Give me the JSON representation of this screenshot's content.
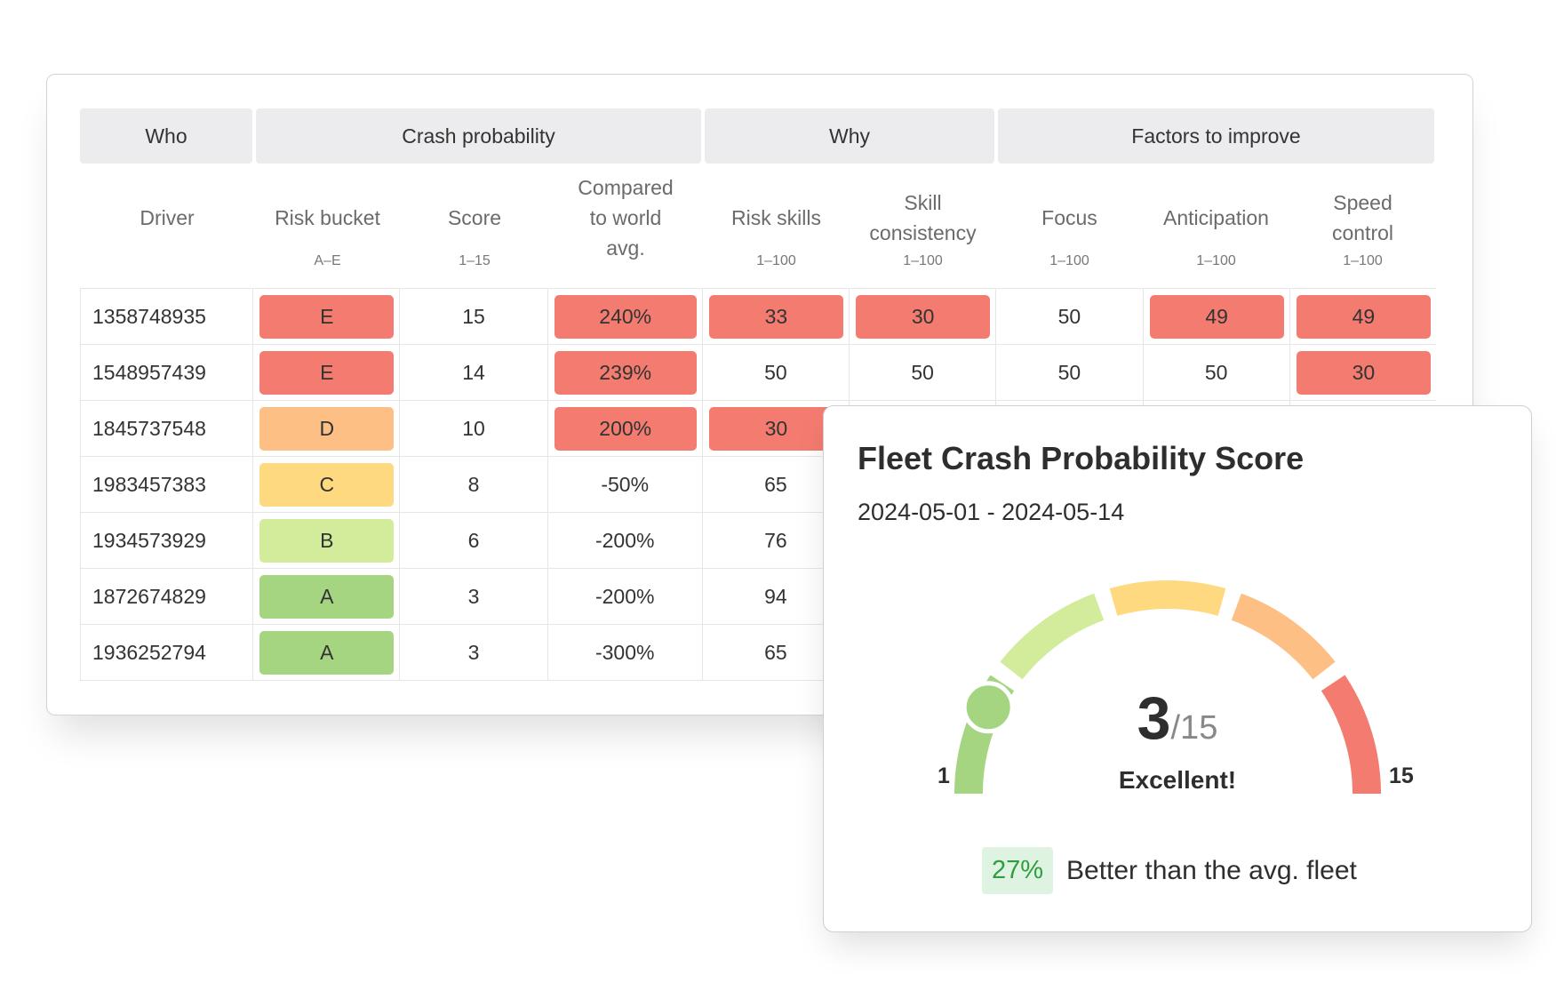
{
  "colors": {
    "red": "#f47b70",
    "orange": "#fdbf84",
    "yellow": "#fed97f",
    "lightgreen": "#d2ec9c",
    "green": "#a6d582"
  },
  "table": {
    "groups": [
      "Who",
      "Crash probability",
      "Why",
      "Factors to improve"
    ],
    "columns": [
      {
        "label": "Driver",
        "sub": ""
      },
      {
        "label": "Risk bucket",
        "sub": "A–E"
      },
      {
        "label": "Score",
        "sub": "1–15"
      },
      {
        "label": "Compared to world avg.",
        "sub": ""
      },
      {
        "label": "Risk skills",
        "sub": "1–100"
      },
      {
        "label": "Skill consistency",
        "sub": "1–100"
      },
      {
        "label": "Focus",
        "sub": "1–100"
      },
      {
        "label": "Anticipation",
        "sub": "1–100"
      },
      {
        "label": "Speed control",
        "sub": "1–100"
      }
    ],
    "rows": [
      [
        {
          "t": "1358748935"
        },
        {
          "t": "E",
          "c": "red"
        },
        {
          "t": "15"
        },
        {
          "t": "240%",
          "c": "red"
        },
        {
          "t": "33",
          "c": "red"
        },
        {
          "t": "30",
          "c": "red"
        },
        {
          "t": "50"
        },
        {
          "t": "49",
          "c": "red"
        },
        {
          "t": "49",
          "c": "red"
        }
      ],
      [
        {
          "t": "1548957439"
        },
        {
          "t": "E",
          "c": "red"
        },
        {
          "t": "14"
        },
        {
          "t": "239%",
          "c": "red"
        },
        {
          "t": "50"
        },
        {
          "t": "50"
        },
        {
          "t": "50"
        },
        {
          "t": "50"
        },
        {
          "t": "30",
          "c": "red"
        }
      ],
      [
        {
          "t": "1845737548"
        },
        {
          "t": "D",
          "c": "orange"
        },
        {
          "t": "10"
        },
        {
          "t": "200%",
          "c": "red"
        },
        {
          "t": "30",
          "c": "red"
        }
      ],
      [
        {
          "t": "1983457383"
        },
        {
          "t": "C",
          "c": "yellow"
        },
        {
          "t": "8"
        },
        {
          "t": "-50%"
        },
        {
          "t": "65"
        }
      ],
      [
        {
          "t": "1934573929"
        },
        {
          "t": "B",
          "c": "lightgreen"
        },
        {
          "t": "6"
        },
        {
          "t": "-200%"
        },
        {
          "t": "76"
        }
      ],
      [
        {
          "t": "1872674829"
        },
        {
          "t": "A",
          "c": "green"
        },
        {
          "t": "3"
        },
        {
          "t": "-200%"
        },
        {
          "t": "94"
        }
      ],
      [
        {
          "t": "1936252794"
        },
        {
          "t": "A",
          "c": "green"
        },
        {
          "t": "3"
        },
        {
          "t": "-300%"
        },
        {
          "t": "65"
        }
      ]
    ]
  },
  "fleet": {
    "title": "Fleet Crash Probability Score",
    "date_range": "2024-05-01 - 2024-05-14",
    "score": 3,
    "score_display": "3",
    "max_display": "/15",
    "min": 1,
    "max": 15,
    "min_label": "1",
    "max_label": "15",
    "verdict": "Excellent!",
    "segments": [
      "green",
      "lightgreen",
      "yellow",
      "orange",
      "red"
    ],
    "compare_value": "27%",
    "compare_text": "Better than the avg. fleet"
  }
}
